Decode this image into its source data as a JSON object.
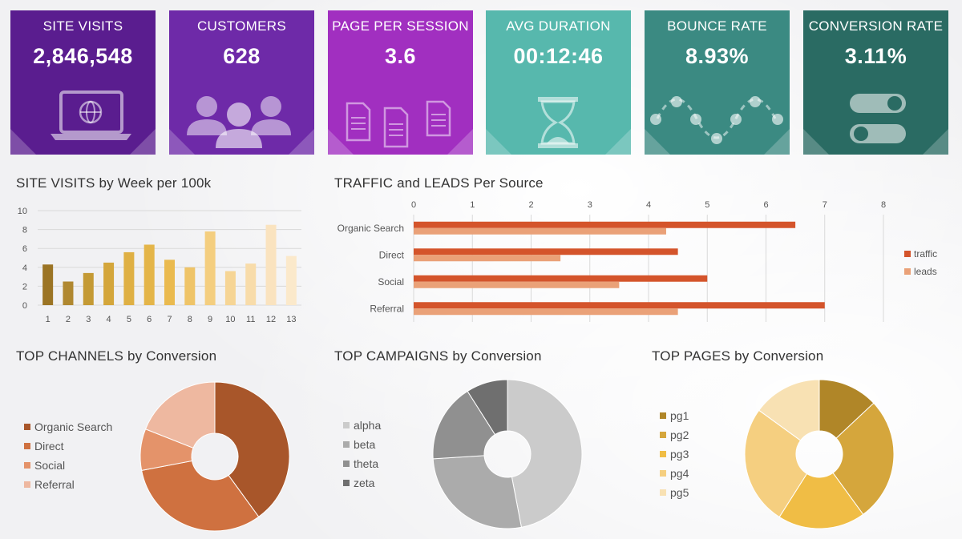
{
  "kpis": [
    {
      "title": "SITE VISITS",
      "value": "2,846,548",
      "icon": "laptop-globe-icon",
      "color": "#5a1d8f"
    },
    {
      "title": "CUSTOMERS",
      "value": "628",
      "icon": "people-group-icon",
      "color": "#6e2aa8"
    },
    {
      "title": "PAGE PER SESSION",
      "value": "3.6",
      "icon": "documents-icon",
      "color": "#a12fc0"
    },
    {
      "title": "AVG DURATION",
      "value": "00:12:46",
      "icon": "hourglass-icon",
      "color": "#57b8ad"
    },
    {
      "title": "BOUNCE RATE",
      "value": "8.93%",
      "icon": "wave-dots-icon",
      "color": "#3b8a82"
    },
    {
      "title": "CONVERSION RATE",
      "value": "3.11%",
      "icon": "toggle-switch-icon",
      "color": "#2a6b63"
    }
  ],
  "sections": {
    "site_visits": "SITE VISITS by Week per 100k",
    "traffic": "TRAFFIC and LEADS Per Source",
    "channels": "TOP CHANNELS by Conversion",
    "campaigns": "TOP CAMPAIGNS by Conversion",
    "pages": "TOP PAGES by Conversion"
  },
  "chart_data": [
    {
      "type": "bar",
      "title": "SITE VISITS by Week per 100k",
      "categories": [
        "1",
        "2",
        "3",
        "4",
        "5",
        "6",
        "7",
        "8",
        "9",
        "10",
        "11",
        "12",
        "13"
      ],
      "values": [
        4.3,
        2.5,
        3.4,
        4.5,
        5.6,
        6.4,
        4.8,
        4.0,
        7.8,
        3.6,
        4.4,
        8.5,
        5.2
      ],
      "colors": [
        "#9b7424",
        "#b08830",
        "#c49a35",
        "#d4a63b",
        "#dfb044",
        "#e4b549",
        "#eaba4f",
        "#efc468",
        "#f4ce7f",
        "#f6d595",
        "#f8dcaa",
        "#fae3bf",
        "#fbe9cb"
      ],
      "ylim": [
        0,
        10
      ],
      "yticks": [
        "0",
        "2",
        "4",
        "6",
        "8",
        "10"
      ],
      "grid": true
    },
    {
      "type": "bar",
      "orientation": "horizontal",
      "title": "TRAFFIC and LEADS Per Source",
      "categories": [
        "Organic Search",
        "Direct",
        "Social",
        "Referral"
      ],
      "series": [
        {
          "name": "traffic",
          "values": [
            6.5,
            4.5,
            5.0,
            7.0
          ],
          "color": "#d4542b"
        },
        {
          "name": "leads",
          "values": [
            4.3,
            2.5,
            3.5,
            4.5
          ],
          "color": "#eaa178"
        }
      ],
      "xlim": [
        0,
        8
      ],
      "xticks": [
        "0",
        "1",
        "2",
        "3",
        "4",
        "5",
        "6",
        "7",
        "8"
      ],
      "legend": "right"
    },
    {
      "type": "pie",
      "title": "TOP CHANNELS by Conversion",
      "labels": [
        "Organic Search",
        "Direct",
        "Social",
        "Referral"
      ],
      "values": [
        40,
        32,
        9,
        19
      ],
      "colors": [
        "#a8562a",
        "#cf7140",
        "#e4936a",
        "#eeb8a0"
      ],
      "legend": "left"
    },
    {
      "type": "pie",
      "title": "TOP CAMPAIGNS by Conversion",
      "labels": [
        "alpha",
        "beta",
        "theta",
        "zeta"
      ],
      "values": [
        47,
        27,
        17,
        9
      ],
      "colors": [
        "#cbcbcb",
        "#ababab",
        "#909090",
        "#6f6f6f"
      ],
      "legend": "left"
    },
    {
      "type": "pie",
      "title": "TOP PAGES by Conversion",
      "labels": [
        "pg1",
        "pg2",
        "pg3",
        "pg4",
        "pg5"
      ],
      "values": [
        13,
        27,
        19,
        26,
        15
      ],
      "colors": [
        "#b08628",
        "#d5a63c",
        "#f0bd45",
        "#f5cf80",
        "#f8e1b3"
      ],
      "legend": "left"
    }
  ]
}
